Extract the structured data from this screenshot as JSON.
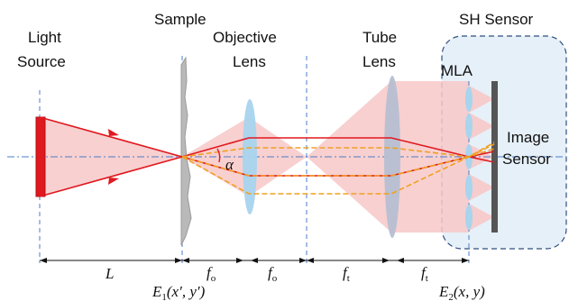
{
  "labels": {
    "light_source_line1": "Light",
    "light_source_line2": "Source",
    "sample": "Sample",
    "objective_line1": "Objective",
    "objective_line2": "Lens",
    "tube_line1": "Tube",
    "tube_line2": "Lens",
    "sh_sensor": "SH Sensor",
    "mla": "MLA",
    "image_sensor_line1": "Image",
    "image_sensor_line2": "Sensor",
    "angle": "α"
  },
  "dimensions": {
    "L": "L",
    "f": "f",
    "sub_o": "o",
    "sub_t": "t"
  },
  "planes": {
    "E": "E",
    "sub_1": "1",
    "sub_2": "2",
    "e1_args": "(x′, y′)",
    "e2_args": "(x, y)"
  },
  "colors": {
    "ray": "#e0191f",
    "dashed_ray": "#f0a020",
    "beam_fill": "#f7c8c8",
    "lens_fill": "#a8d4ee",
    "tube_lens_fill": "#b6bfd2",
    "sensor_box_fill": "#e6f0f8",
    "sensor_box_stroke": "#2f4f7f",
    "plane_line": "#4a7cc8",
    "image_sensor_bar": "#555555",
    "light_source": "#e0191f"
  }
}
